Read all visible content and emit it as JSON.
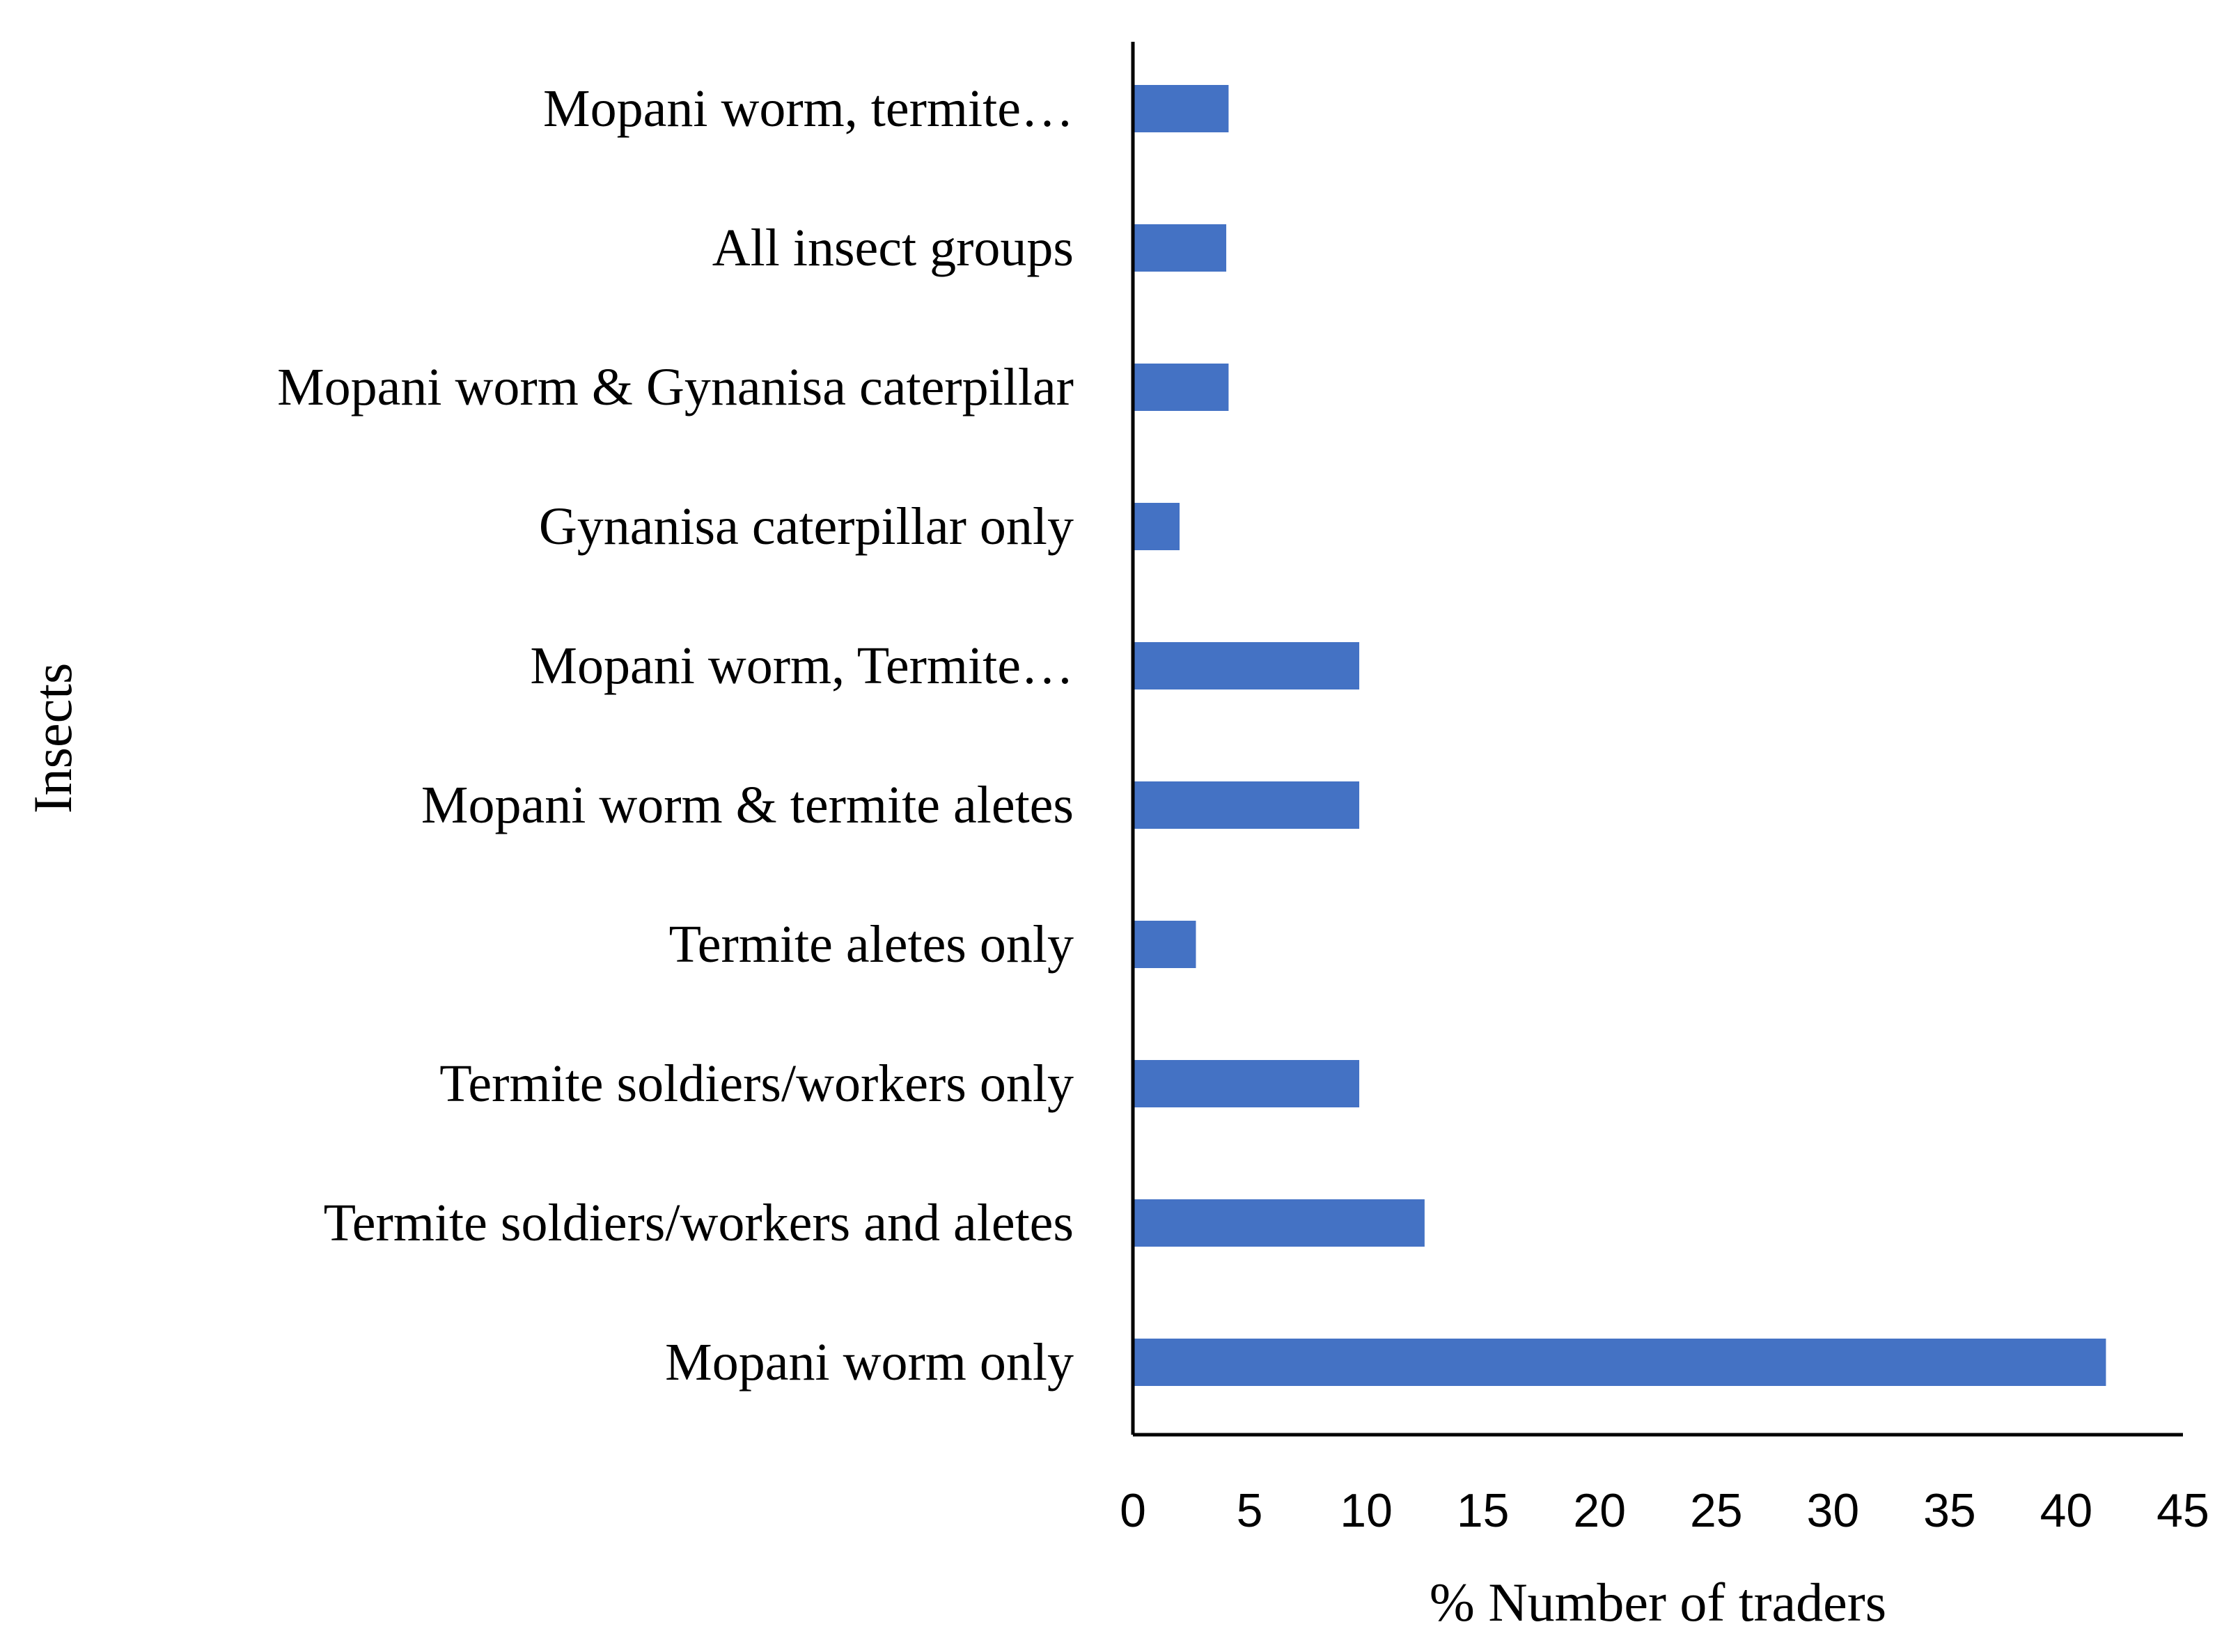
{
  "chart_data": {
    "type": "bar",
    "orientation": "horizontal",
    "categories": [
      "Mopani worm, termite…",
      "All insect groups",
      "Mopani worm & Gynanisa caterpillar",
      "Gynanisa caterpillar only",
      "Mopani worm, Termite…",
      "Mopani worm & termite aletes",
      "Termite aletes only",
      "Termite soldiers/workers only",
      "Termite soldiers/workers and aletes",
      "Mopani  worm only"
    ],
    "values": [
      4.1,
      4.0,
      4.1,
      2.0,
      9.7,
      9.7,
      2.7,
      9.7,
      12.5,
      41.7
    ],
    "xlabel": "% Number of traders",
    "ylabel": "Insects",
    "xlim": [
      0,
      45
    ],
    "xticks": [
      "0",
      "5",
      "10",
      "15",
      "20",
      "25",
      "30",
      "35",
      "40",
      "45"
    ],
    "bar_color": "#4472C4",
    "grid": false,
    "legend": "none"
  }
}
